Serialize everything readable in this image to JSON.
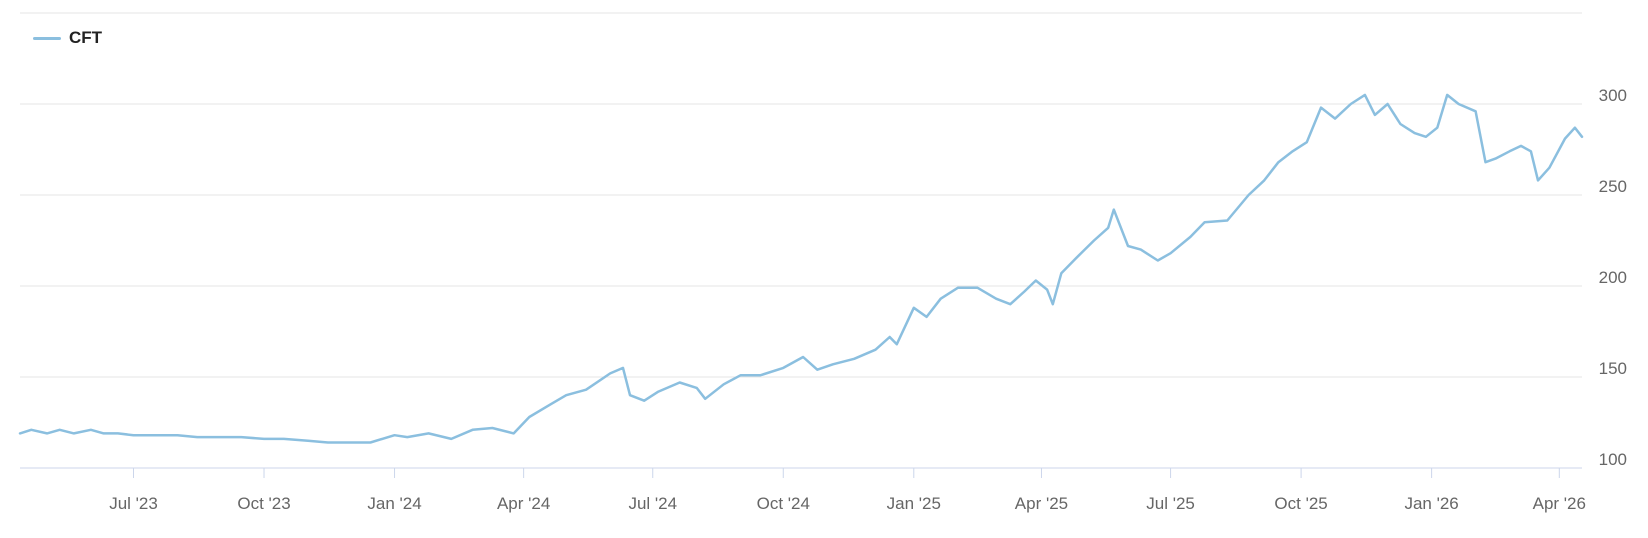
{
  "legend": {
    "label": "CFT",
    "color": "#8bbfdf"
  },
  "chart_data": {
    "type": "line",
    "title": "",
    "xlabel": "",
    "ylabel": "",
    "x_range": [
      "2023-04-12",
      "2026-04-17"
    ],
    "ylim": [
      100,
      350
    ],
    "y_ticks": [
      100,
      150,
      200,
      250,
      300
    ],
    "x_ticks": [
      {
        "label": "Jul '23",
        "date": "2023-07-01"
      },
      {
        "label": "Oct '23",
        "date": "2023-10-01"
      },
      {
        "label": "Jan '24",
        "date": "2024-01-01"
      },
      {
        "label": "Apr '24",
        "date": "2024-04-01"
      },
      {
        "label": "Jul '24",
        "date": "2024-07-01"
      },
      {
        "label": "Oct '24",
        "date": "2024-10-01"
      },
      {
        "label": "Jan '25",
        "date": "2025-01-01"
      },
      {
        "label": "Apr '25",
        "date": "2025-04-01"
      },
      {
        "label": "Jul '25",
        "date": "2025-07-01"
      },
      {
        "label": "Oct '25",
        "date": "2025-10-01"
      },
      {
        "label": "Jan '26",
        "date": "2026-01-01"
      },
      {
        "label": "Apr '26",
        "date": "2026-04-01"
      }
    ],
    "grid": true,
    "legend_position": "top-left",
    "series": [
      {
        "name": "CFT",
        "color": "#8bbfdf",
        "points": [
          [
            "2023-04-12",
            119
          ],
          [
            "2023-04-20",
            121
          ],
          [
            "2023-05-01",
            119
          ],
          [
            "2023-05-10",
            121
          ],
          [
            "2023-05-20",
            119
          ],
          [
            "2023-06-01",
            121
          ],
          [
            "2023-06-10",
            119
          ],
          [
            "2023-06-20",
            119
          ],
          [
            "2023-07-01",
            118
          ],
          [
            "2023-07-15",
            118
          ],
          [
            "2023-08-01",
            118
          ],
          [
            "2023-08-15",
            117
          ],
          [
            "2023-09-01",
            117
          ],
          [
            "2023-09-15",
            117
          ],
          [
            "2023-10-01",
            116
          ],
          [
            "2023-10-15",
            116
          ],
          [
            "2023-11-01",
            115
          ],
          [
            "2023-11-15",
            114
          ],
          [
            "2023-12-01",
            114
          ],
          [
            "2023-12-15",
            114
          ],
          [
            "2024-01-01",
            118
          ],
          [
            "2024-01-10",
            117
          ],
          [
            "2024-01-25",
            119
          ],
          [
            "2024-02-10",
            116
          ],
          [
            "2024-02-25",
            121
          ],
          [
            "2024-03-10",
            122
          ],
          [
            "2024-03-25",
            119
          ],
          [
            "2024-04-05",
            128
          ],
          [
            "2024-04-20",
            135
          ],
          [
            "2024-05-01",
            140
          ],
          [
            "2024-05-15",
            143
          ],
          [
            "2024-06-01",
            152
          ],
          [
            "2024-06-10",
            155
          ],
          [
            "2024-06-15",
            140
          ],
          [
            "2024-06-25",
            137
          ],
          [
            "2024-07-05",
            142
          ],
          [
            "2024-07-20",
            147
          ],
          [
            "2024-08-01",
            144
          ],
          [
            "2024-08-07",
            138
          ],
          [
            "2024-08-20",
            146
          ],
          [
            "2024-09-01",
            151
          ],
          [
            "2024-09-15",
            151
          ],
          [
            "2024-10-01",
            155
          ],
          [
            "2024-10-15",
            161
          ],
          [
            "2024-10-25",
            154
          ],
          [
            "2024-11-05",
            157
          ],
          [
            "2024-11-20",
            160
          ],
          [
            "2024-12-05",
            165
          ],
          [
            "2024-12-15",
            172
          ],
          [
            "2024-12-20",
            168
          ],
          [
            "2025-01-01",
            188
          ],
          [
            "2025-01-10",
            183
          ],
          [
            "2025-01-20",
            193
          ],
          [
            "2025-02-01",
            199
          ],
          [
            "2025-02-15",
            199
          ],
          [
            "2025-02-28",
            193
          ],
          [
            "2025-03-10",
            190
          ],
          [
            "2025-03-20",
            197
          ],
          [
            "2025-03-28",
            203
          ],
          [
            "2025-04-05",
            198
          ],
          [
            "2025-04-09",
            190
          ],
          [
            "2025-04-15",
            207
          ],
          [
            "2025-04-25",
            215
          ],
          [
            "2025-05-08",
            225
          ],
          [
            "2025-05-18",
            232
          ],
          [
            "2025-05-22",
            242
          ],
          [
            "2025-06-01",
            222
          ],
          [
            "2025-06-10",
            220
          ],
          [
            "2025-06-22",
            214
          ],
          [
            "2025-07-01",
            218
          ],
          [
            "2025-07-15",
            227
          ],
          [
            "2025-07-25",
            235
          ],
          [
            "2025-08-10",
            236
          ],
          [
            "2025-08-25",
            250
          ],
          [
            "2025-09-05",
            258
          ],
          [
            "2025-09-15",
            268
          ],
          [
            "2025-09-25",
            274
          ],
          [
            "2025-10-05",
            279
          ],
          [
            "2025-10-15",
            298
          ],
          [
            "2025-10-25",
            292
          ],
          [
            "2025-11-05",
            300
          ],
          [
            "2025-11-15",
            305
          ],
          [
            "2025-11-22",
            294
          ],
          [
            "2025-12-01",
            300
          ],
          [
            "2025-12-10",
            289
          ],
          [
            "2025-12-20",
            284
          ],
          [
            "2025-12-28",
            282
          ],
          [
            "2026-01-05",
            287
          ],
          [
            "2026-01-12",
            305
          ],
          [
            "2026-01-20",
            300
          ],
          [
            "2026-02-01",
            296
          ],
          [
            "2026-02-08",
            268
          ],
          [
            "2026-02-15",
            270
          ],
          [
            "2026-02-25",
            274
          ],
          [
            "2026-03-05",
            277
          ],
          [
            "2026-03-12",
            274
          ],
          [
            "2026-03-17",
            258
          ],
          [
            "2026-03-25",
            265
          ],
          [
            "2026-04-05",
            281
          ],
          [
            "2026-04-12",
            287
          ],
          [
            "2026-04-17",
            282
          ]
        ]
      }
    ]
  }
}
